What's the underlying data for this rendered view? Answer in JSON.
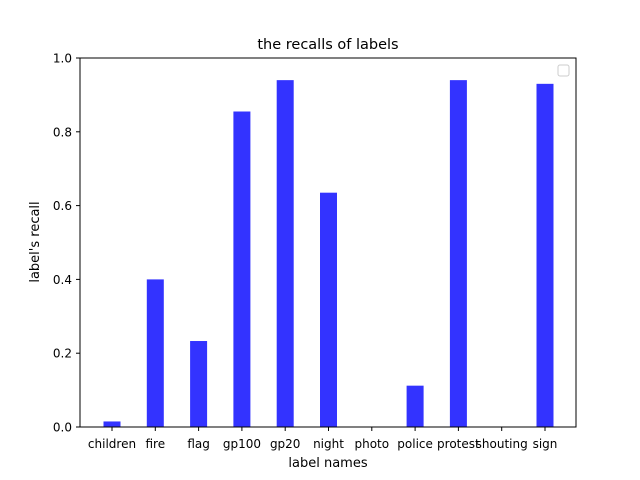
{
  "chart_data": {
    "type": "bar",
    "title": "the recalls of labels",
    "xlabel": "label names",
    "ylabel": "label's recall",
    "categories": [
      "children",
      "fire",
      "flag",
      "gp100",
      "gp20",
      "night",
      "photo",
      "police",
      "protest",
      "shouting",
      "sign"
    ],
    "values": [
      0.015,
      0.4,
      0.233,
      0.855,
      0.94,
      0.635,
      0.0,
      0.112,
      0.94,
      0.0,
      0.93
    ],
    "ylim": [
      0,
      1.0
    ],
    "yticks": [
      0.0,
      0.2,
      0.4,
      0.6,
      0.8,
      1.0
    ],
    "ytick_labels": [
      "0.0",
      "0.2",
      "0.4",
      "0.6",
      "0.8",
      "1.0"
    ],
    "bar_color": "#3333ff",
    "grid": false,
    "legend": "upper-right, empty"
  }
}
